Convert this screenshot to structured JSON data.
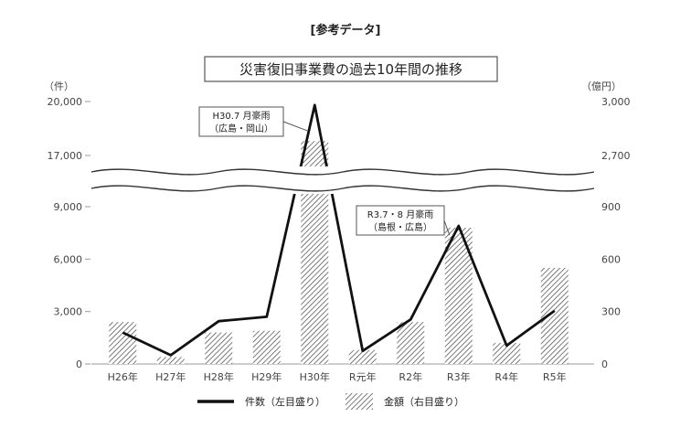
{
  "header": "[参考データ]",
  "chart_data": {
    "type": "bar",
    "title": "災害復旧事業費の過去10年間の推移",
    "left_unit": "（件）",
    "right_unit": "（億円）",
    "categories": [
      "H26年",
      "H27年",
      "H28年",
      "H29年",
      "H30年",
      "R元年",
      "R2年",
      "R3年",
      "R4年",
      "R5年"
    ],
    "left_ticks": [
      "0",
      "3,000",
      "6,000",
      "9,000",
      "17,000",
      "20,000"
    ],
    "right_ticks": [
      "0",
      "300",
      "600",
      "900",
      "2,700",
      "3,000"
    ],
    "axis_break": {
      "left": [
        9000,
        17000
      ],
      "right": [
        900,
        2700
      ]
    },
    "series": [
      {
        "name": "件数（左目盛り）",
        "type": "line",
        "values": [
          1800,
          500,
          2450,
          2700,
          19800,
          750,
          2550,
          7900,
          1050,
          3050
        ]
      },
      {
        "name": "金額（右目盛り）",
        "type": "bar",
        "values": [
          240,
          40,
          180,
          190,
          2780,
          80,
          240,
          780,
          120,
          550
        ]
      }
    ],
    "annotations": [
      {
        "line1": "H30.7 月豪雨",
        "line2": "（広島・岡山）",
        "category": "H30年"
      },
      {
        "line1": "R3.7・8 月豪雨",
        "line2": "（島根・広島）",
        "category": "R3年"
      }
    ],
    "colors": {
      "line": "#111111",
      "bar_hatch": "#444444",
      "axis": "#999999"
    },
    "grid": false,
    "legend_position": "bottom"
  }
}
